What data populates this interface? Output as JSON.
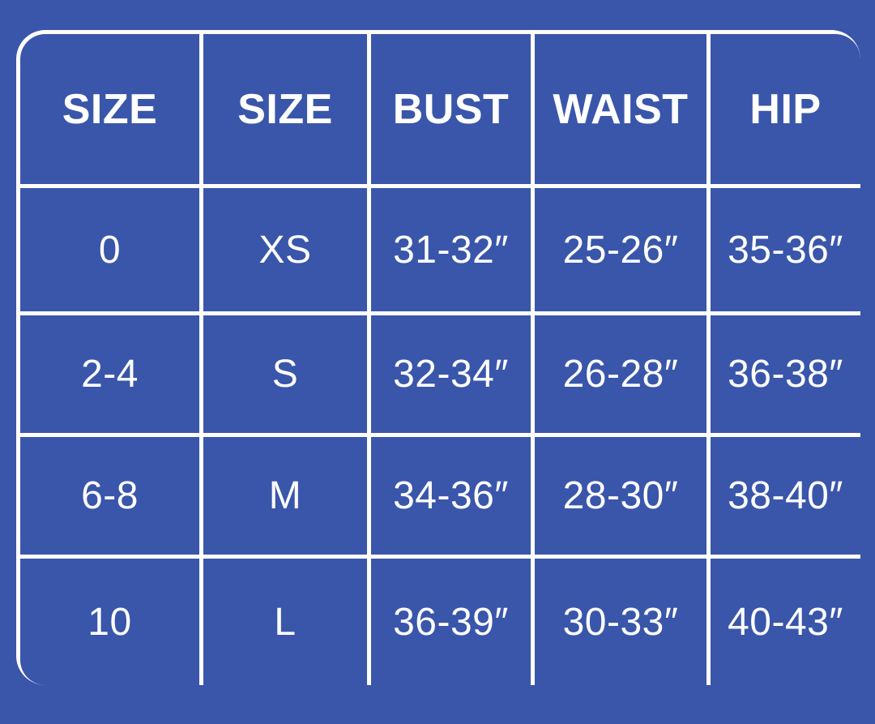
{
  "colors": {
    "background": "#3a56aa",
    "lines": "#ffffff",
    "text": "#ffffff"
  },
  "table": {
    "headers": [
      "SIZE",
      "SIZE",
      "BUST",
      "WAIST",
      "HIP"
    ],
    "rows": [
      [
        "0",
        "XS",
        "31-32″",
        "25-26″",
        "35-36″"
      ],
      [
        "2-4",
        "S",
        "32-34″",
        "26-28″",
        "36-38″"
      ],
      [
        "6-8",
        "M",
        "34-36″",
        "28-30″",
        "38-40″"
      ],
      [
        "10",
        "L",
        "36-39″",
        "30-33″",
        "40-43″"
      ]
    ]
  }
}
